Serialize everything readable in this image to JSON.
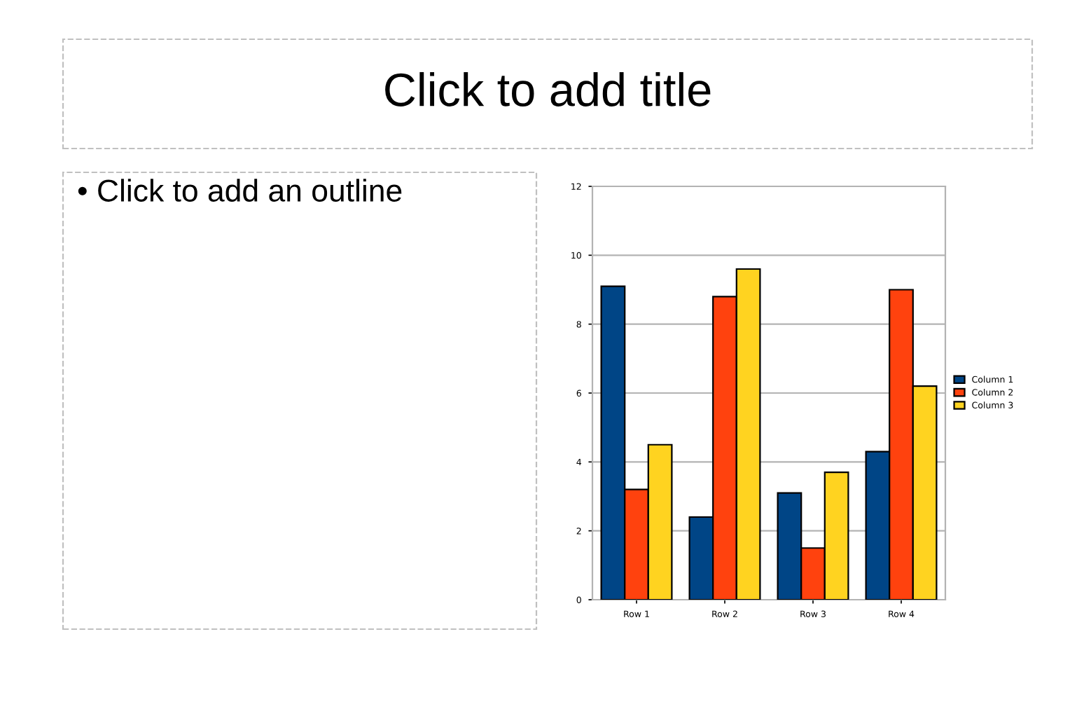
{
  "chart_data": {
    "type": "bar",
    "title": "Click to add title",
    "annotations": [
      "• Click to add an outline"
    ],
    "categories": [
      "Row 1",
      "Row 2",
      "Row 3",
      "Row 4"
    ],
    "series": [
      {
        "name": "Column 1",
        "color": "#004586",
        "values": [
          9.1,
          2.4,
          3.1,
          4.3
        ]
      },
      {
        "name": "Column 2",
        "color": "#ff420e",
        "values": [
          3.2,
          8.8,
          1.5,
          9.0
        ]
      },
      {
        "name": "Column 3",
        "color": "#ffd320",
        "values": [
          4.5,
          9.6,
          3.7,
          6.2
        ]
      }
    ],
    "ylim": [
      0,
      12
    ],
    "yticks": [
      0,
      2,
      4,
      6,
      8,
      10,
      12
    ],
    "grid": "y",
    "legend": "right"
  }
}
